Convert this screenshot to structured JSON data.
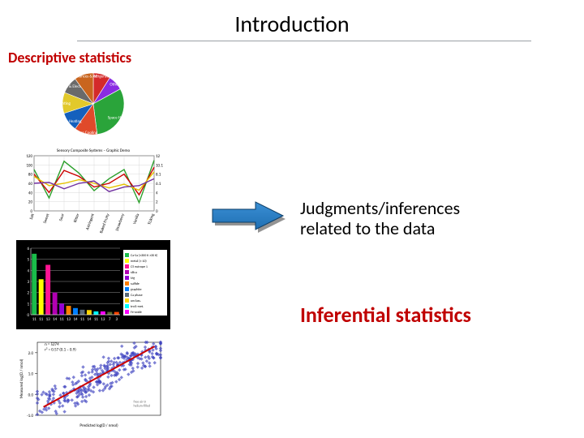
{
  "title": "Introduction",
  "descriptive_label": "Descriptive statistics",
  "judgments_text_line1": "Judgments/inferences",
  "judgments_text_line2": "related to the data",
  "inferential_label": "Inferential statistics",
  "arrow": {
    "fill": "#1f6fb3",
    "stroke": "#0d3d66",
    "shadow": "#3a3a3a"
  },
  "pie_chart": {
    "type": "pie",
    "background_color": "#ffffff",
    "slices": [
      {
        "label": "Refrigerator",
        "value": 9,
        "color": "#d42a2a"
      },
      {
        "label": "Other",
        "value": 8,
        "color": "#8a2be2"
      },
      {
        "label": "Space Heating",
        "value": 31,
        "color": "#2aa43a"
      },
      {
        "label": "Space Cooling",
        "value": 12,
        "color": "#e04a2a"
      },
      {
        "label": "Water Heating",
        "value": 10,
        "color": "#1560bd"
      },
      {
        "label": "Lighting",
        "value": 11,
        "color": "#e2c92b"
      },
      {
        "label": "Computers & Electronics",
        "value": 9,
        "color": "#6a6a6a"
      },
      {
        "label": "Appliances & AC",
        "value": 10,
        "color": "#c9651f"
      }
    ],
    "label_fontsize": 5,
    "label_color": "#ffffff"
  },
  "line_chart": {
    "type": "line",
    "title": "Sensory Composite Systems – Graphic Demo",
    "title_fontsize": 5,
    "background_color": "#ffffff",
    "grid_color": "#d0d0d0",
    "axis_color": "#000000",
    "categories": [
      "Salt",
      "Sweet",
      "Sour",
      "Bitter",
      "Astringent",
      "Baked Fruity",
      "Strawberry",
      "Vanilla",
      "TLiking"
    ],
    "y_left": {
      "lim": [
        0,
        120
      ],
      "ticks": [
        0,
        20,
        40,
        60,
        80,
        100,
        120
      ],
      "fontsize": 5
    },
    "y_right": {
      "lim": [
        0,
        12
      ],
      "ticks": [
        0.0,
        2.0,
        4.0,
        6.1,
        8.1,
        10.1,
        12.0
      ],
      "fontsize": 5
    },
    "x_fontsize": 5,
    "line_width": 1.4,
    "series": [
      {
        "color": "#2ca02c",
        "values": [
          90,
          28,
          108,
          82,
          44,
          70,
          90,
          18,
          110
        ]
      },
      {
        "color": "#cc0000",
        "values": [
          80,
          40,
          88,
          75,
          52,
          60,
          80,
          35,
          95
        ]
      },
      {
        "color": "#e6c200",
        "values": [
          75,
          55,
          60,
          68,
          60,
          50,
          58,
          45,
          85
        ]
      },
      {
        "color": "#7030a0",
        "values": [
          60,
          62,
          48,
          60,
          65,
          42,
          52,
          55,
          70
        ]
      }
    ]
  },
  "bar_chart": {
    "type": "bar",
    "background_color": "#000000",
    "plot_background": "#000000",
    "grid_color": "#d0d0d0",
    "axis_color": "#ffffff",
    "x_labels": [
      "11",
      "11",
      "13",
      "14",
      "11",
      "13",
      "14",
      "11",
      "14",
      "11",
      "13",
      "7",
      "3"
    ],
    "x_fontsize": 5,
    "y_lim": [
      0,
      6
    ],
    "y_ticks": [
      0,
      1,
      2,
      3,
      4,
      5,
      6
    ],
    "y_fontsize": 5,
    "bar_width": 0.7,
    "values": [
      5.5,
      3.2,
      4.5,
      2.0,
      1.0,
      0.8,
      0.6,
      0.45,
      0.42,
      0.3,
      0.3,
      0.25,
      0.25
    ],
    "bar_colors": [
      "#1abc4a",
      "#ffff00",
      "#ff1493",
      "#b300b3",
      "#9400d3",
      "#ff7f00",
      "#007fff",
      "#5a6a7a",
      "#ffd400",
      "#00ffff",
      "#ff00ff",
      "#556b2f",
      "#ff4500"
    ],
    "legend": {
      "position": "right",
      "box_background": "#ffffff",
      "fontsize": 4,
      "items": [
        {
          "color": "#1abc4a",
          "label": "Ca-Sa (≥300 K ≥30 K)"
        },
        {
          "color": "#ffff00",
          "label": "metal (≥ 10)"
        },
        {
          "color": "#ff1493",
          "label": "C5 eutrope 1"
        },
        {
          "color": "#b300b3",
          "label": "silica"
        },
        {
          "color": "#9400d3",
          "label": "Mg"
        },
        {
          "color": "#ff7f00",
          "label": "sulfide"
        },
        {
          "color": "#007fff",
          "label": "graphite"
        },
        {
          "color": "#5a6a7a",
          "label": "Ca phase"
        },
        {
          "color": "#ffd400",
          "label": "unclass."
        },
        {
          "color": "#00ffff",
          "label": "troil.-met."
        },
        {
          "color": "#ff00ff",
          "label": "Fe-oxide"
        }
      ]
    }
  },
  "scatter_chart": {
    "type": "scatter",
    "background_color": "#ffffff",
    "grid_color": "#eeeeee",
    "axis_color": "#000000",
    "xlabel": "Predicted log(D / nmol)",
    "ylabel": "Measured log(D / nmol)",
    "label_fontsize": 5,
    "x_lim": [
      0,
      100
    ],
    "y_lim": [
      -1.0,
      2.5
    ],
    "y_ticks": [
      -1.0,
      0.0,
      1.0,
      2.0
    ],
    "annotations": [
      {
        "text": "n = 5274",
        "x": 6,
        "y": 2.35,
        "fontsize": 5,
        "color": "#000"
      },
      {
        "text": "r² = 0.57 (0.1 – 0.9)",
        "x": 6,
        "y": 2.1,
        "fontsize": 5,
        "color": "#000"
      },
      {
        "text": "free-air D",
        "x": 78,
        "y": -0.4,
        "fontsize": 4,
        "color": "#666"
      },
      {
        "text": "helium-filled",
        "x": 78,
        "y": -0.6,
        "fontsize": 4,
        "color": "#666"
      }
    ],
    "fit_line": {
      "color": "#cc0000",
      "width": 2,
      "x": [
        5,
        95
      ],
      "y": [
        -0.6,
        2.3
      ]
    },
    "marker": {
      "shape": "diamond",
      "size": 2.2,
      "color": "#3a3fbf"
    },
    "n_points": 300
  }
}
